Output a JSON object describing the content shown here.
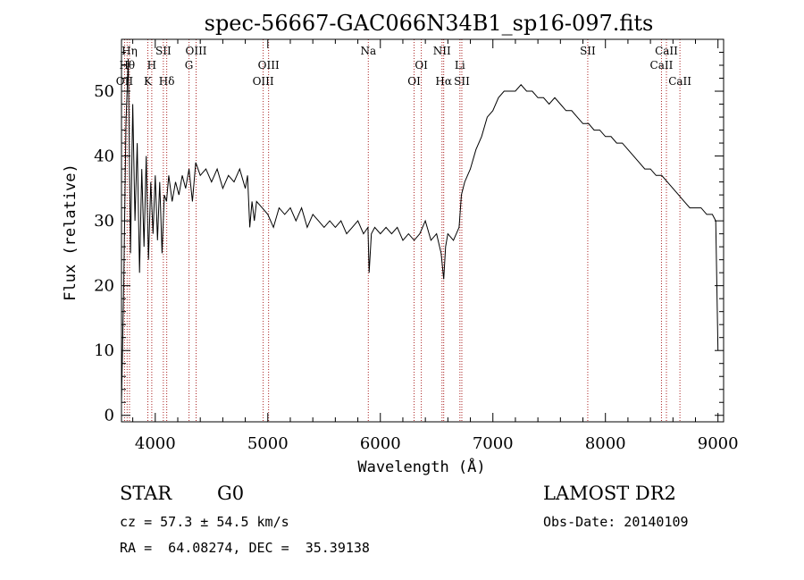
{
  "chart_data": {
    "type": "line",
    "title": "spec-56667-GAC066N34B1_sp16-097.fits",
    "xlabel": "Wavelength (Å)",
    "ylabel": "Flux (relative)",
    "xlim": [
      3700,
      9050
    ],
    "ylim": [
      -1,
      58
    ],
    "x_ticks": [
      4000,
      5000,
      6000,
      7000,
      8000,
      9000
    ],
    "y_ticks": [
      0,
      10,
      20,
      30,
      40,
      50
    ],
    "grid": false,
    "line_color": "#000000",
    "marker_color": "#aa2222",
    "series": [
      {
        "x": [
          3700,
          3720,
          3740,
          3760,
          3780,
          3800,
          3820,
          3840,
          3860,
          3880,
          3900,
          3920,
          3940,
          3960,
          3980,
          4000,
          4020,
          4040,
          4060,
          4080,
          4100,
          4120,
          4150,
          4180,
          4210,
          4240,
          4270,
          4300,
          4330,
          4360,
          4400,
          4450,
          4500,
          4550,
          4600,
          4650,
          4700,
          4750,
          4800,
          4820,
          4840,
          4860,
          4880,
          4900,
          4950,
          5000,
          5050,
          5100,
          5150,
          5200,
          5250,
          5300,
          5350,
          5400,
          5450,
          5500,
          5550,
          5600,
          5650,
          5700,
          5750,
          5800,
          5850,
          5890,
          5900,
          5920,
          5950,
          6000,
          6050,
          6100,
          6150,
          6200,
          6250,
          6300,
          6350,
          6400,
          6450,
          6500,
          6540,
          6563,
          6580,
          6600,
          6650,
          6700,
          6720,
          6750,
          6800,
          6850,
          6900,
          6950,
          7000,
          7050,
          7100,
          7150,
          7200,
          7250,
          7300,
          7350,
          7400,
          7450,
          7500,
          7550,
          7600,
          7650,
          7700,
          7750,
          7800,
          7850,
          7900,
          7950,
          8000,
          8050,
          8100,
          8150,
          8200,
          8250,
          8300,
          8350,
          8400,
          8450,
          8500,
          8550,
          8600,
          8650,
          8700,
          8750,
          8800,
          8850,
          8900,
          8950,
          8980,
          9000
        ],
        "y": [
          2,
          20,
          45,
          55,
          25,
          48,
          30,
          42,
          22,
          38,
          26,
          40,
          24,
          36,
          28,
          37,
          27,
          36,
          25,
          34,
          33,
          37,
          33,
          36,
          34,
          37,
          35,
          38,
          33,
          39,
          37,
          38,
          36,
          38,
          35,
          37,
          36,
          38,
          35,
          37,
          29,
          33,
          30,
          33,
          32,
          31,
          29,
          32,
          31,
          32,
          30,
          32,
          29,
          31,
          30,
          29,
          30,
          29,
          30,
          28,
          29,
          30,
          28,
          29,
          22,
          28,
          29,
          28,
          29,
          28,
          29,
          27,
          28,
          27,
          28,
          30,
          27,
          28,
          25,
          21,
          26,
          28,
          27,
          29,
          34,
          36,
          38,
          41,
          43,
          46,
          47,
          49,
          50,
          50,
          50,
          51,
          50,
          50,
          49,
          49,
          48,
          49,
          48,
          47,
          47,
          46,
          45,
          45,
          44,
          44,
          43,
          43,
          42,
          42,
          41,
          40,
          39,
          38,
          38,
          37,
          37,
          36,
          35,
          34,
          33,
          32,
          32,
          32,
          31,
          31,
          30,
          10
        ]
      }
    ],
    "line_markers": [
      {
        "x": 3727,
        "label": "OII",
        "row": 3
      },
      {
        "x": 3750,
        "label": "Hθ",
        "row": 2
      },
      {
        "x": 3771,
        "label": "Hη",
        "row": 1
      },
      {
        "x": 3934,
        "label": "K",
        "row": 3
      },
      {
        "x": 3969,
        "label": "H",
        "row": 2
      },
      {
        "x": 4072,
        "label": "SII",
        "row": 1
      },
      {
        "x": 4102,
        "label": "Hδ",
        "row": 3
      },
      {
        "x": 4300,
        "label": "G",
        "row": 2
      },
      {
        "x": 4363,
        "label": "OIII",
        "row": 1
      },
      {
        "x": 4959,
        "label": "OIII",
        "row": 3
      },
      {
        "x": 5007,
        "label": "OIII",
        "row": 2
      },
      {
        "x": 5893,
        "label": "Na",
        "row": 1
      },
      {
        "x": 6300,
        "label": "OI",
        "row": 3
      },
      {
        "x": 6364,
        "label": "OI",
        "row": 2
      },
      {
        "x": 6548,
        "label": "NII",
        "row": 1
      },
      {
        "x": 6563,
        "label": "Hα",
        "row": 3
      },
      {
        "x": 6707,
        "label": "Li",
        "row": 2
      },
      {
        "x": 6724,
        "label": "SII",
        "row": 3
      },
      {
        "x": 7843,
        "label": "SII",
        "row": 1
      },
      {
        "x": 8498,
        "label": "CaII",
        "row": 2
      },
      {
        "x": 8542,
        "label": "CaII",
        "row": 1
      },
      {
        "x": 8662,
        "label": "CaII",
        "row": 3
      }
    ]
  },
  "info": {
    "object_class": "STAR",
    "subclass": "G0",
    "survey": "LAMOST DR2",
    "redshift": "cz = 57.3 ± 54.5 km/s",
    "obs_date": "Obs-Date: 20140109",
    "coords": "RA =  64.08274, DEC =  35.39138"
  }
}
